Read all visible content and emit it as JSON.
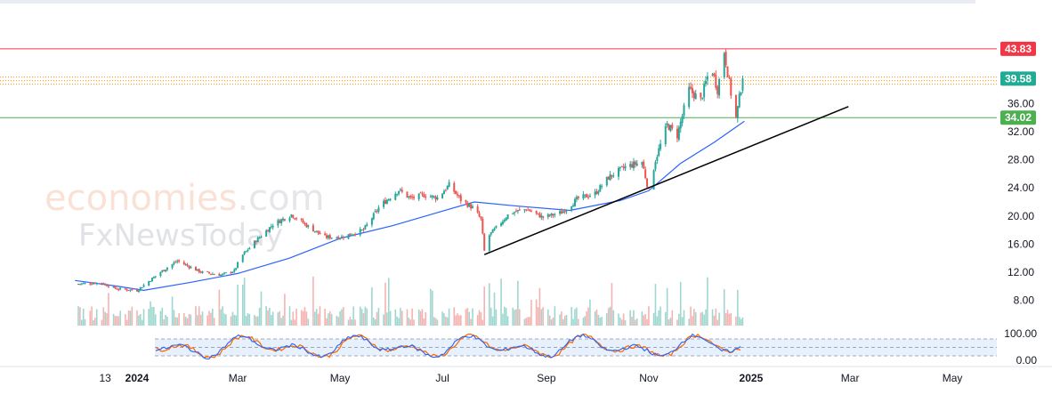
{
  "chart_data": {
    "type": "candlestick",
    "price_axis": {
      "range": [
        4.5,
        48
      ],
      "ticks": [
        8.0,
        12.0,
        16.0,
        20.0,
        24.0,
        28.0,
        32.0,
        36.0
      ],
      "tick_labels": [
        "8.00",
        "12.00",
        "16.00",
        "20.00",
        "24.00",
        "28.00",
        "32.00",
        "36.00"
      ]
    },
    "time_axis": {
      "ticks": [
        {
          "date": "2023-12-13",
          "label": "13",
          "bold": false
        },
        {
          "date": "2024-01-01",
          "label": "2024",
          "bold": true
        },
        {
          "date": "2024-03-01",
          "label": "Mar",
          "bold": false
        },
        {
          "date": "2024-05-01",
          "label": "May",
          "bold": false
        },
        {
          "date": "2024-07-01",
          "label": "Jul",
          "bold": false
        },
        {
          "date": "2024-09-01",
          "label": "Sep",
          "bold": false
        },
        {
          "date": "2024-11-01",
          "label": "Nov",
          "bold": false
        },
        {
          "date": "2025-01-01",
          "label": "2025",
          "bold": true
        },
        {
          "date": "2025-03-01",
          "label": "Mar",
          "bold": false
        },
        {
          "date": "2025-05-01",
          "label": "May",
          "bold": false
        }
      ]
    },
    "price_path": [
      {
        "date": "2023-11-25",
        "close": 10.3
      },
      {
        "date": "2023-12-10",
        "close": 10.5
      },
      {
        "date": "2023-12-20",
        "close": 9.6
      },
      {
        "date": "2024-01-01",
        "close": 9.4
      },
      {
        "date": "2024-01-15",
        "close": 12.0
      },
      {
        "date": "2024-01-25",
        "close": 13.6
      },
      {
        "date": "2024-02-08",
        "close": 12.0
      },
      {
        "date": "2024-02-20",
        "close": 11.6
      },
      {
        "date": "2024-02-28",
        "close": 12.2
      },
      {
        "date": "2024-03-03",
        "close": 14.2
      },
      {
        "date": "2024-03-12",
        "close": 16.5
      },
      {
        "date": "2024-03-22",
        "close": 18.8
      },
      {
        "date": "2024-04-02",
        "close": 20.2
      },
      {
        "date": "2024-04-12",
        "close": 18.5
      },
      {
        "date": "2024-04-22",
        "close": 17.0
      },
      {
        "date": "2024-05-02",
        "close": 17.0
      },
      {
        "date": "2024-05-15",
        "close": 18.0
      },
      {
        "date": "2024-05-25",
        "close": 21.5
      },
      {
        "date": "2024-06-05",
        "close": 23.7
      },
      {
        "date": "2024-06-12",
        "close": 22.5
      },
      {
        "date": "2024-06-20",
        "close": 23.0
      },
      {
        "date": "2024-06-28",
        "close": 22.6
      },
      {
        "date": "2024-07-05",
        "close": 24.4
      },
      {
        "date": "2024-07-12",
        "close": 22.3
      },
      {
        "date": "2024-07-20",
        "close": 21.0
      },
      {
        "date": "2024-07-24",
        "close": 19.5
      },
      {
        "date": "2024-07-26",
        "close": 15.0
      },
      {
        "date": "2024-07-28",
        "close": 17.0
      },
      {
        "date": "2024-08-10",
        "close": 20.4
      },
      {
        "date": "2024-08-20",
        "close": 21.0
      },
      {
        "date": "2024-08-30",
        "close": 19.8
      },
      {
        "date": "2024-09-10",
        "close": 20.5
      },
      {
        "date": "2024-09-20",
        "close": 22.5
      },
      {
        "date": "2024-09-30",
        "close": 23.2
      },
      {
        "date": "2024-10-08",
        "close": 25.5
      },
      {
        "date": "2024-10-18",
        "close": 27.0
      },
      {
        "date": "2024-10-28",
        "close": 27.7
      },
      {
        "date": "2024-11-01",
        "close": 23.5
      },
      {
        "date": "2024-11-05",
        "close": 28.0
      },
      {
        "date": "2024-11-12",
        "close": 33.0
      },
      {
        "date": "2024-11-18",
        "close": 31.5
      },
      {
        "date": "2024-11-25",
        "close": 38.0
      },
      {
        "date": "2024-12-02",
        "close": 36.5
      },
      {
        "date": "2024-12-08",
        "close": 41.5
      },
      {
        "date": "2024-12-12",
        "close": 38.0
      },
      {
        "date": "2024-12-16",
        "close": 43.5
      },
      {
        "date": "2024-12-20",
        "close": 37.5
      },
      {
        "date": "2024-12-23",
        "close": 34.0
      },
      {
        "date": "2024-12-27",
        "close": 39.6
      }
    ],
    "moving_average": [
      {
        "date": "2023-11-25",
        "value": 10.8
      },
      {
        "date": "2023-12-20",
        "value": 10.0
      },
      {
        "date": "2024-01-05",
        "value": 9.4
      },
      {
        "date": "2024-02-01",
        "value": 10.5
      },
      {
        "date": "2024-03-01",
        "value": 11.8
      },
      {
        "date": "2024-04-01",
        "value": 14.0
      },
      {
        "date": "2024-05-01",
        "value": 16.8
      },
      {
        "date": "2024-06-01",
        "value": 18.6
      },
      {
        "date": "2024-07-01",
        "value": 20.7
      },
      {
        "date": "2024-07-20",
        "value": 22.0
      },
      {
        "date": "2024-08-15",
        "value": 21.4
      },
      {
        "date": "2024-09-15",
        "value": 20.8
      },
      {
        "date": "2024-10-15",
        "value": 22.2
      },
      {
        "date": "2024-11-01",
        "value": 23.6
      },
      {
        "date": "2024-11-20",
        "value": 27.5
      },
      {
        "date": "2024-12-10",
        "value": 30.5
      },
      {
        "date": "2024-12-28",
        "value": 33.5
      }
    ],
    "trendline": {
      "start": {
        "date": "2024-07-26",
        "value": 14.5
      },
      "end": {
        "date": "2025-02-28",
        "value": 35.6
      }
    },
    "horizontal_levels": [
      {
        "value": 43.83,
        "label": "43.83",
        "color": "#f23645",
        "style": "solid"
      },
      {
        "value": 39.58,
        "label": "39.58",
        "color": "#22ab94",
        "style": "none"
      },
      {
        "value": 34.02,
        "label": "34.02",
        "color": "#4caf50",
        "style": "solid"
      }
    ],
    "resistance_band": {
      "from": 38.8,
      "to": 39.8,
      "color": "#ff9800",
      "style": "dotted"
    },
    "stochastic": {
      "axis_ticks": [
        100.0,
        0.0
      ],
      "tick_labels": [
        "100.00",
        "0.00"
      ],
      "band": [
        20,
        80
      ],
      "series": [
        {
          "color": "#2962ff"
        },
        {
          "color": "#ff6d00"
        }
      ]
    }
  },
  "watermark": {
    "line1": "economies",
    "line1_suffix": ".com",
    "line2": "FxNewsToday"
  },
  "colors": {
    "up": "#26a69a",
    "down": "#ef5350",
    "ma": "#2962ff",
    "trendline": "#000000"
  }
}
